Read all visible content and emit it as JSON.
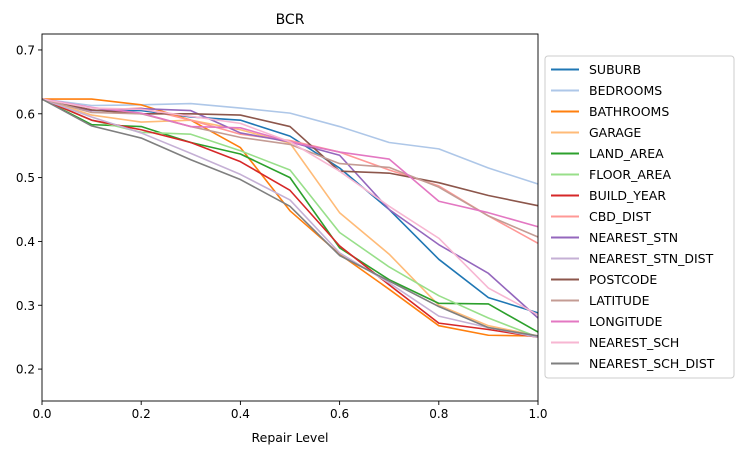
{
  "chart_data": {
    "type": "line",
    "title": "BCR",
    "xlabel": "Repair Level",
    "ylabel": "",
    "xlim": [
      0.0,
      1.0
    ],
    "ylim": [
      0.15,
      0.725
    ],
    "x": [
      0.0,
      0.1,
      0.2,
      0.3,
      0.4,
      0.5,
      0.6,
      0.7,
      0.8,
      0.9,
      1.0
    ],
    "xticks": [
      "0.0",
      "0.2",
      "0.4",
      "0.6",
      "0.8",
      "1.0"
    ],
    "xtick_values": [
      0.0,
      0.2,
      0.4,
      0.6,
      0.8,
      1.0
    ],
    "yticks": [
      "0.2",
      "0.3",
      "0.4",
      "0.5",
      "0.6",
      "0.7"
    ],
    "ytick_values": [
      0.2,
      0.3,
      0.4,
      0.5,
      0.6,
      0.7
    ],
    "grid": false,
    "legend_position": "right",
    "series": [
      {
        "name": "SUBURB",
        "color": "#1f77b4",
        "values": [
          0.623,
          0.605,
          0.605,
          0.595,
          0.59,
          0.565,
          0.515,
          0.45,
          0.372,
          0.312,
          0.288
        ]
      },
      {
        "name": "BEDROOMS",
        "color": "#aec7e8",
        "values": [
          0.623,
          0.613,
          0.614,
          0.616,
          0.609,
          0.601,
          0.58,
          0.555,
          0.545,
          0.515,
          0.49
        ]
      },
      {
        "name": "BATHROOMS",
        "color": "#ff7f0e",
        "values": [
          0.623,
          0.623,
          0.614,
          0.59,
          0.547,
          0.448,
          0.38,
          0.325,
          0.268,
          0.253,
          0.252
        ]
      },
      {
        "name": "GARAGE",
        "color": "#ffbb78",
        "values": [
          0.623,
          0.598,
          0.587,
          0.59,
          0.575,
          0.554,
          0.445,
          0.38,
          0.3,
          0.268,
          0.252
        ]
      },
      {
        "name": "LAND_AREA",
        "color": "#2ca02c",
        "values": [
          0.623,
          0.583,
          0.58,
          0.555,
          0.537,
          0.5,
          0.39,
          0.34,
          0.303,
          0.302,
          0.258
        ]
      },
      {
        "name": "FLOOR_AREA",
        "color": "#98df8a",
        "values": [
          0.623,
          0.59,
          0.571,
          0.568,
          0.542,
          0.512,
          0.414,
          0.36,
          0.315,
          0.28,
          0.25
        ]
      },
      {
        "name": "BUILD_YEAR",
        "color": "#d62728",
        "values": [
          0.623,
          0.59,
          0.575,
          0.555,
          0.525,
          0.48,
          0.393,
          0.332,
          0.272,
          0.262,
          0.25
        ]
      },
      {
        "name": "CBD_DIST",
        "color": "#ff9896",
        "values": [
          0.623,
          0.605,
          0.609,
          0.59,
          0.568,
          0.558,
          0.54,
          0.512,
          0.487,
          0.44,
          0.397
        ]
      },
      {
        "name": "NEAREST_STN",
        "color": "#9467bd",
        "values": [
          0.623,
          0.605,
          0.608,
          0.605,
          0.57,
          0.556,
          0.535,
          0.45,
          0.395,
          0.35,
          0.28
        ]
      },
      {
        "name": "NEAREST_STN_DIST",
        "color": "#c5b0d5",
        "values": [
          0.623,
          0.595,
          0.57,
          0.538,
          0.505,
          0.465,
          0.382,
          0.335,
          0.283,
          0.265,
          0.25
        ]
      },
      {
        "name": "POSTCODE",
        "color": "#8c564b",
        "values": [
          0.623,
          0.606,
          0.6,
          0.6,
          0.598,
          0.58,
          0.51,
          0.507,
          0.492,
          0.472,
          0.456
        ]
      },
      {
        "name": "LATITUDE",
        "color": "#c49c94",
        "values": [
          0.623,
          0.602,
          0.6,
          0.58,
          0.563,
          0.552,
          0.522,
          0.516,
          0.485,
          0.44,
          0.407
        ]
      },
      {
        "name": "LONGITUDE",
        "color": "#e377c2",
        "values": [
          0.623,
          0.61,
          0.601,
          0.58,
          0.578,
          0.556,
          0.54,
          0.529,
          0.463,
          0.445,
          0.423
        ]
      },
      {
        "name": "NEAREST_SCH",
        "color": "#f7b6d2",
        "values": [
          0.623,
          0.609,
          0.607,
          0.596,
          0.585,
          0.556,
          0.51,
          0.455,
          0.405,
          0.327,
          0.285
        ]
      },
      {
        "name": "NEAREST_SCH_DIST",
        "color": "#7f7f7f",
        "values": [
          0.623,
          0.581,
          0.562,
          0.528,
          0.497,
          0.455,
          0.378,
          0.338,
          0.298,
          0.265,
          0.252
        ]
      }
    ]
  }
}
